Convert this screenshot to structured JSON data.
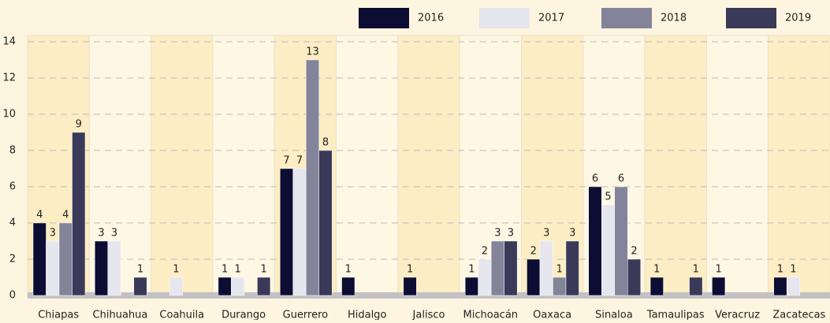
{
  "chart_data": {
    "type": "bar",
    "categories": [
      "Chiapas",
      "Chihuahua",
      "Coahuila",
      "Durango",
      "Guerrero",
      "Hidalgo",
      "Jalisco",
      "Michoacán",
      "Oaxaca",
      "Sinaloa",
      "Tamaulipas",
      "Veracruz",
      "Zacatecas"
    ],
    "series": [
      {
        "name": "2016",
        "color": "#0d0d33",
        "values": [
          4,
          3,
          null,
          1,
          7,
          1,
          1,
          1,
          2,
          6,
          1,
          1,
          1
        ]
      },
      {
        "name": "2017",
        "color": "#e6e6ee",
        "values": [
          3,
          3,
          1,
          1,
          7,
          null,
          null,
          2,
          3,
          5,
          null,
          null,
          1
        ]
      },
      {
        "name": "2018",
        "color": "#83839a",
        "values": [
          4,
          null,
          null,
          null,
          13,
          null,
          null,
          3,
          1,
          6,
          null,
          null,
          null
        ]
      },
      {
        "name": "2019",
        "color": "#3a3a58",
        "values": [
          9,
          1,
          null,
          1,
          8,
          null,
          null,
          3,
          3,
          2,
          1,
          null,
          null
        ]
      }
    ],
    "ylim": [
      0,
      14
    ],
    "yticks": [
      0,
      2,
      4,
      6,
      8,
      10,
      12,
      14
    ],
    "grid": true,
    "legend": "top"
  }
}
